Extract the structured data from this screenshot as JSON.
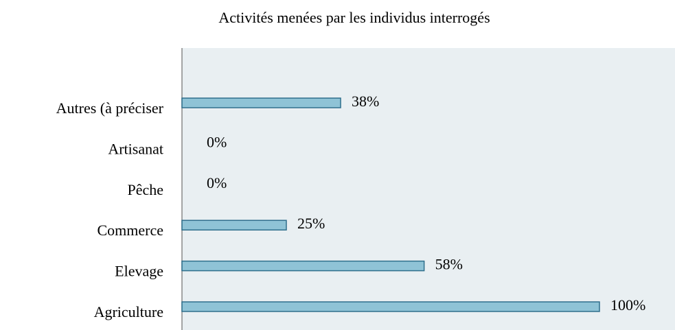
{
  "chart_data": {
    "type": "barh",
    "title": "Activités menées par les individus interrogés",
    "categories": [
      "Autres (à préciser",
      "Artisanat",
      "Pêche",
      "Commerce",
      "Elevage",
      "Agriculture"
    ],
    "values": [
      38,
      0,
      0,
      25,
      58,
      100
    ],
    "value_labels": [
      "38%",
      "0%",
      "0%",
      "25%",
      "58%",
      "100%"
    ],
    "color": "#8fc3d6",
    "xlim": [
      0,
      100
    ]
  }
}
